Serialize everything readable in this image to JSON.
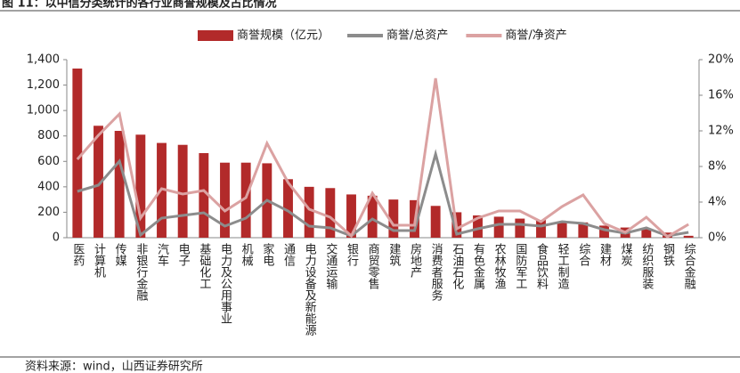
{
  "chart_data": {
    "type": "bar",
    "title": "图 11：以中信分类统计的各行业商誉规模及占比情况",
    "source": "资料来源：wind，山西证券研究所",
    "categories": [
      "医药",
      "计算机",
      "传媒",
      "非银行金融",
      "汽车",
      "电子",
      "基础化工",
      "电力及公用事业",
      "机械",
      "家电",
      "通信",
      "电力设备及新能源",
      "交通运输",
      "银行",
      "商贸零售",
      "建筑",
      "房地产",
      "消费者服务",
      "石油石化",
      "有色金属",
      "农林牧渔",
      "国防军工",
      "食品饮料",
      "轻工制造",
      "综合",
      "建材",
      "煤炭",
      "纺织服装",
      "钢铁",
      "综合金融"
    ],
    "series": [
      {
        "name": "商誉规模（亿元）",
        "type": "bar",
        "color": "#b22a2a",
        "values": [
          1330,
          880,
          840,
          810,
          745,
          730,
          665,
          590,
          590,
          585,
          460,
          400,
          390,
          340,
          330,
          300,
          295,
          250,
          200,
          175,
          165,
          150,
          140,
          125,
          120,
          95,
          80,
          70,
          40,
          15
        ]
      },
      {
        "name": "商誉/总资产",
        "type": "line",
        "axis": "y2",
        "color": "#8c8c8c",
        "values": [
          5.2,
          5.9,
          8.6,
          0.3,
          2.2,
          2.5,
          2.8,
          1.3,
          2.2,
          4.2,
          3.0,
          1.3,
          1.1,
          0.2,
          2.1,
          0.8,
          0.8,
          9.4,
          0.4,
          1.0,
          1.5,
          1.5,
          1.3,
          1.8,
          1.6,
          0.9,
          0.5,
          1.1,
          0.2,
          0.6
        ]
      },
      {
        "name": "商誉/净资产",
        "type": "line",
        "axis": "y2",
        "color": "#dba2a2",
        "values": [
          8.8,
          11.5,
          13.9,
          2.2,
          5.5,
          4.9,
          5.3,
          3.0,
          4.5,
          10.6,
          6.2,
          3.2,
          2.3,
          0.2,
          5.0,
          1.4,
          1.4,
          17.9,
          1.0,
          2.2,
          3.0,
          3.0,
          1.8,
          3.5,
          4.8,
          1.6,
          0.6,
          2.3,
          0.1,
          1.5
        ]
      }
    ],
    "ylim": [
      0,
      1400
    ],
    "yticks": [
      0,
      200,
      400,
      600,
      800,
      {
        "value": 1000,
        "label": "1,000"
      },
      {
        "value": 1200,
        "label": "1,200"
      },
      {
        "value": 1400,
        "label": "1,400"
      }
    ],
    "y2lim": [
      0,
      20
    ],
    "y2ticks": [
      {
        "value": 0,
        "label": "0%"
      },
      {
        "value": 4,
        "label": "4%"
      },
      {
        "value": 8,
        "label": "8%"
      },
      {
        "value": 12,
        "label": "12%"
      },
      {
        "value": 16,
        "label": "16%"
      },
      {
        "value": 20,
        "label": "20%"
      }
    ],
    "legend": "top"
  }
}
